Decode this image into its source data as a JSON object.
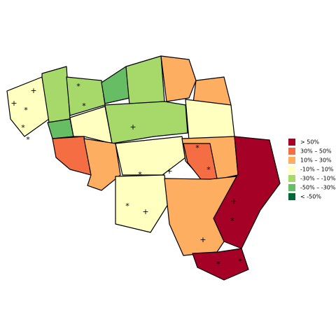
{
  "legend": [
    {
      "label": "> 50%",
      "color": "#a50026"
    },
    {
      "label": "30%  –  50%",
      "color": "#f46d43"
    },
    {
      "label": "10%  –  30%",
      "color": "#fdae61"
    },
    {
      "label": "-10%  –  10%",
      "color": "#ffffbf"
    },
    {
      "label": "-30%  –  -10%",
      "color": "#a6d96a"
    },
    {
      "label": "-50%  –  -30%",
      "color": "#66bd63"
    },
    {
      "label": "< -50%",
      "color": "#006837"
    }
  ],
  "markers": [
    "+",
    "+",
    "*",
    "*",
    "*",
    "*",
    "*",
    "+",
    "*",
    "*",
    "+",
    "+",
    "*",
    "*",
    "+",
    "*",
    "+",
    "*",
    "*"
  ]
}
